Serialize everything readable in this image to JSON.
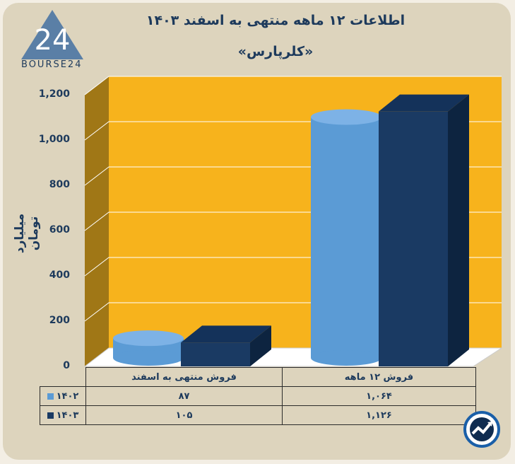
{
  "header": {
    "title": "اطلاعات ۱۲ ماهه منتهی به اسفند ۱۴۰۳",
    "subtitle": "«کلرپارس»"
  },
  "logo": {
    "text": "BOURSE24"
  },
  "chart_data": {
    "type": "bar",
    "title": "اطلاعات ۱۲ ماهه منتهی به اسفند ۱۴۰۳",
    "subtitle": "«کلرپارس»",
    "ylabel": "میلیارد تومان",
    "xlabel": "",
    "ylim": [
      0,
      1200
    ],
    "yticks": [
      0,
      200,
      400,
      600,
      800,
      1000,
      1200
    ],
    "ytick_labels": [
      "0",
      "200",
      "400",
      "600",
      "800",
      "1,000",
      "1,200"
    ],
    "categories": [
      "فروش منتهی به  اسفند",
      "فروش ۱۲ ماهه"
    ],
    "series": [
      {
        "name": "۱۴۰۲",
        "values": [
          87,
          1064
        ],
        "value_labels": [
          "۸۷",
          "۱,۰۶۴"
        ],
        "color": "#5b9bd5",
        "shape": "cylinder"
      },
      {
        "name": "۱۴۰۳",
        "values": [
          105,
          1126
        ],
        "value_labels": [
          "۱۰۵",
          "۱,۱۲۶"
        ],
        "color": "#1a3a63",
        "shape": "box"
      }
    ],
    "grid": true,
    "legend": "data-table-left",
    "plot_color": "#f7b31c",
    "wall_color": "#a07716"
  }
}
